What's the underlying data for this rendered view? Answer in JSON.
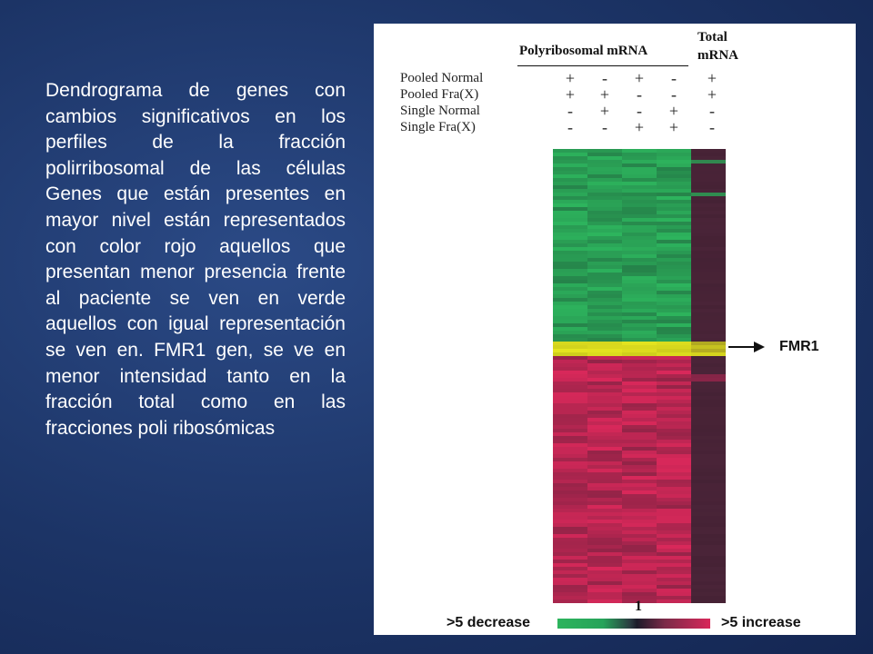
{
  "slide": {
    "text": "Dendrograma de genes con cambios significativos en los perfiles de la fracción polirribosomal de las células Genes que están presentes en mayor nivel están representados con color rojo aquellos que presentan menor presencia frente al paciente se ven en verde aquellos con igual representación se ven en. FMR1 gen,  se ve en menor intensidad tanto en la fracción total como en las fracciones poli ribosómicas"
  },
  "figure": {
    "header_poly": "Polyribosomal mRNA",
    "header_total_1": "Total",
    "header_total_2": "mRNA",
    "rows": [
      {
        "label": "Pooled Normal",
        "signs": [
          "+",
          "-",
          "+",
          "-",
          "+"
        ]
      },
      {
        "label": "Pooled Fra(X)",
        "signs": [
          "+",
          "+",
          "-",
          "-",
          "+"
        ]
      },
      {
        "label": "Single Normal",
        "signs": [
          "-",
          "+",
          "-",
          "+",
          "-"
        ]
      },
      {
        "label": "Single Fra(X)",
        "signs": [
          "-",
          "-",
          "+",
          "+",
          "-"
        ]
      }
    ],
    "gene_marker": "FMR1",
    "scale_left": ">5 decrease",
    "scale_right": ">5 increase",
    "scale_mid": "1",
    "colors": {
      "green": "#2db45d",
      "red": "#d8285a",
      "yellow": "#e6e620",
      "dark": "#4a2438"
    }
  }
}
